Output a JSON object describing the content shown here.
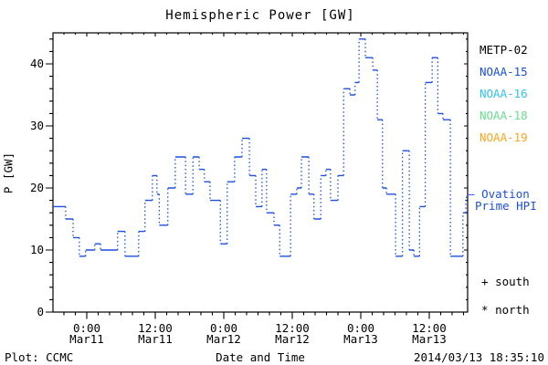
{
  "header": {
    "title": "Hemispheric Power [GW]"
  },
  "footer": {
    "left": "Plot: CCMC",
    "center": "Date and Time",
    "right": "2014/03/13 18:35:10"
  },
  "legend": {
    "satellites": [
      {
        "label": "METP-02",
        "color": "#000000"
      },
      {
        "label": "NOAA-15",
        "color": "#1c4fe0"
      },
      {
        "label": "NOAA-16",
        "color": "#2ec4ee"
      },
      {
        "label": "NOAA-18",
        "color": "#66e08c"
      },
      {
        "label": "NOAA-19",
        "color": "#ffa520"
      }
    ],
    "line_label": {
      "marker": "—",
      "line1": "Ovation",
      "line2": "Prime HPI",
      "color": "#1c4fe0"
    },
    "hemisphere_markers": [
      {
        "symbol": "+",
        "label": "south"
      },
      {
        "symbol": "*",
        "label": "north"
      }
    ]
  },
  "chart_data": {
    "type": "line",
    "style": "step-dotted-histogram",
    "title": "Hemispheric Power [GW]",
    "xlabel": "Date and Time",
    "ylabel": "P [GW]",
    "ylim": [
      0,
      45
    ],
    "y_major_ticks": [
      0,
      10,
      20,
      30,
      40
    ],
    "y_minor_step": 2,
    "x_hours_range": [
      -5.9,
      66.7
    ],
    "x_epoch": "hours from 2014-03-11 00:00 UT",
    "x_major_ticks": [
      {
        "hour": 0,
        "time": "0:00",
        "date": "Mar11"
      },
      {
        "hour": 12,
        "time": "12:00",
        "date": "Mar11"
      },
      {
        "hour": 24,
        "time": "0:00",
        "date": "Mar12"
      },
      {
        "hour": 36,
        "time": "12:00",
        "date": "Mar12"
      },
      {
        "hour": 48,
        "time": "0:00",
        "date": "Mar13"
      },
      {
        "hour": 60,
        "time": "12:00",
        "date": "Mar13"
      }
    ],
    "x_minor_step_hours": 2,
    "grid": false,
    "line_color": "#1c4fe0",
    "series": [
      {
        "name": "Ovation Prime HPI",
        "points": [
          [
            -5.9,
            17
          ],
          [
            -3.7,
            15
          ],
          [
            -2.4,
            12
          ],
          [
            -1.3,
            9
          ],
          [
            -0.2,
            10
          ],
          [
            1.4,
            11
          ],
          [
            2.4,
            10
          ],
          [
            5.4,
            13
          ],
          [
            6.7,
            9
          ],
          [
            9.1,
            13
          ],
          [
            10.2,
            18
          ],
          [
            11.5,
            22
          ],
          [
            12.3,
            19
          ],
          [
            12.7,
            14
          ],
          [
            14.2,
            20
          ],
          [
            15.5,
            25
          ],
          [
            17.3,
            19
          ],
          [
            18.6,
            25
          ],
          [
            19.7,
            23
          ],
          [
            20.6,
            21
          ],
          [
            21.6,
            18
          ],
          [
            23.4,
            11
          ],
          [
            24.6,
            21
          ],
          [
            25.9,
            25
          ],
          [
            27.2,
            28
          ],
          [
            28.5,
            22
          ],
          [
            29.6,
            17
          ],
          [
            30.7,
            23
          ],
          [
            31.5,
            16
          ],
          [
            32.8,
            14
          ],
          [
            33.8,
            9
          ],
          [
            35.7,
            19
          ],
          [
            36.8,
            20
          ],
          [
            37.6,
            25
          ],
          [
            38.9,
            19
          ],
          [
            39.8,
            15
          ],
          [
            41.0,
            22
          ],
          [
            41.9,
            23
          ],
          [
            42.7,
            18
          ],
          [
            44.0,
            22
          ],
          [
            45.0,
            36
          ],
          [
            46.1,
            35
          ],
          [
            47.0,
            37
          ],
          [
            47.7,
            44
          ],
          [
            48.8,
            41
          ],
          [
            50.1,
            39
          ],
          [
            50.9,
            31
          ],
          [
            51.8,
            20
          ],
          [
            52.5,
            19
          ],
          [
            54.1,
            9
          ],
          [
            55.3,
            26
          ],
          [
            56.5,
            10
          ],
          [
            57.3,
            9
          ],
          [
            58.3,
            17
          ],
          [
            59.3,
            37
          ],
          [
            60.5,
            41
          ],
          [
            61.5,
            32
          ],
          [
            62.4,
            31
          ],
          [
            63.7,
            9
          ],
          [
            65.9,
            16
          ],
          [
            66.4,
            18.5
          ]
        ]
      }
    ]
  }
}
